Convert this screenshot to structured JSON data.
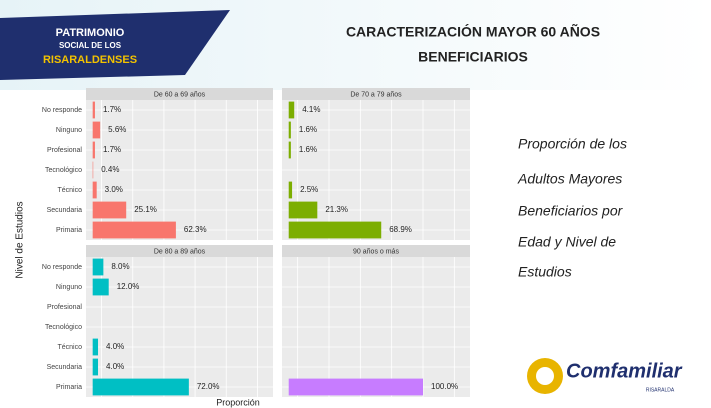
{
  "logo": [
    "PATRIMONIO",
    "SOCIAL DE LOS",
    "RISARALDENSES"
  ],
  "title": [
    "CARACTERIZACIÓN MAYOR 60 AÑOS",
    "BENEFICIARIOS"
  ],
  "side_text": [
    "Proporción de los",
    "Adultos Mayores",
    "Beneficiarios por",
    "Edad y Nivel de",
    "Estudios"
  ],
  "brand": "Comfamiliar",
  "brand_sub": "RISARALDA",
  "axes": {
    "xlabel": "Proporción",
    "ylabel": "Nivel de Estudios"
  },
  "chart_data": [
    {
      "type": "bar",
      "title": "De 60 a 69 años",
      "color": "#f8766d",
      "xlim": [
        -5,
        135
      ],
      "grid": true,
      "categories": [
        "No responde",
        "Ninguno",
        "Profesional",
        "Tecnológico",
        "Técnico",
        "Secundaria",
        "Primaria"
      ],
      "values": [
        1.7,
        5.6,
        1.7,
        0.4,
        3,
        25.1,
        62.3
      ],
      "value_labels": [
        "1.7%",
        "5.6%",
        "1.7%",
        "0.4%",
        "3.0%",
        "25.1%",
        "62.3%"
      ]
    },
    {
      "type": "bar",
      "title": "De 70 a 79 años",
      "color": "#7cae00",
      "xlim": [
        -5,
        135
      ],
      "grid": true,
      "categories": [
        "No responde",
        "Ninguno",
        "Profesional",
        "Tecnológico",
        "Técnico",
        "Secundaria",
        "Primaria"
      ],
      "values": [
        4.1,
        1.6,
        1.6,
        null,
        2.5,
        21.3,
        68.9
      ],
      "value_labels": [
        "4.1%",
        "1.6%",
        "1.6%",
        null,
        "2.5%",
        "21.3%",
        "68.9%"
      ]
    },
    {
      "type": "bar",
      "title": "De 80 a 89 años",
      "color": "#00bfc4",
      "xlim": [
        -5,
        135
      ],
      "grid": true,
      "categories": [
        "No responde",
        "Ninguno",
        "Profesional",
        "Tecnológico",
        "Técnico",
        "Secundaria",
        "Primaria"
      ],
      "values": [
        8,
        12,
        null,
        null,
        4,
        4,
        72
      ],
      "value_labels": [
        "8.0%",
        "12.0%",
        null,
        null,
        "4.0%",
        "4.0%",
        "72.0%"
      ]
    },
    {
      "type": "bar",
      "title": "90 años o más",
      "color": "#c77cff",
      "xlim": [
        -5,
        135
      ],
      "grid": true,
      "categories": [
        "No responde",
        "Ninguno",
        "Profesional",
        "Tecnológico",
        "Técnico",
        "Secundaria",
        "Primaria"
      ],
      "values": [
        null,
        null,
        null,
        null,
        null,
        null,
        100
      ],
      "value_labels": [
        null,
        null,
        null,
        null,
        null,
        null,
        "100.0%"
      ]
    }
  ]
}
